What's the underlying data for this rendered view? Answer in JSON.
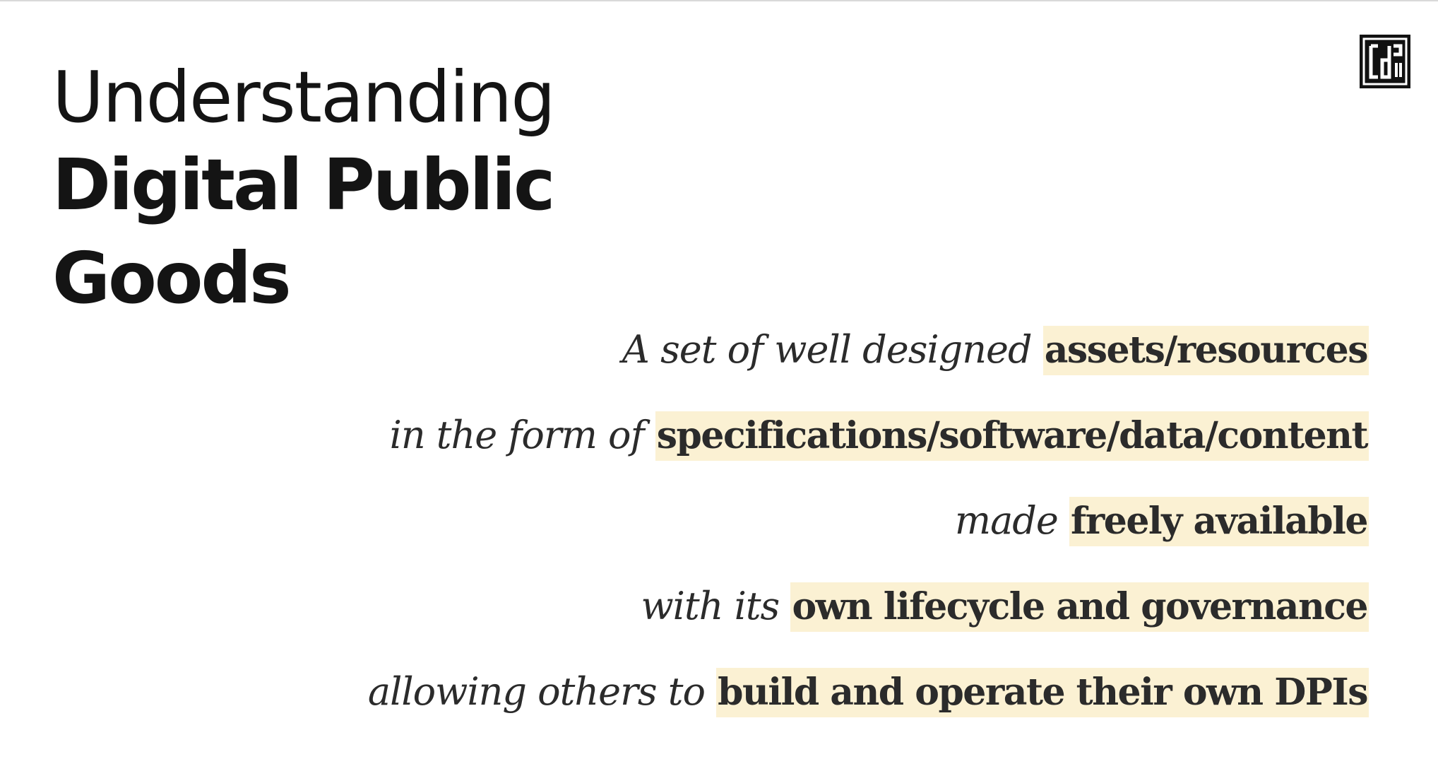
{
  "slide": {
    "title_line1": "Understanding",
    "title_line2": "Digital Public Goods",
    "logo_icon": "cdpi-logo-icon",
    "highlight_color": "#fbf1d3",
    "statements": [
      {
        "plain": "A set of well designed ",
        "highlight": "assets/resources"
      },
      {
        "plain": "in the form of ",
        "highlight": "specifications/software/data/content"
      },
      {
        "plain": "made ",
        "highlight": "freely available"
      },
      {
        "plain": "with its ",
        "highlight": "own lifecycle and governance"
      },
      {
        "plain": "allowing others to ",
        "highlight": "build and operate their own DPIs"
      }
    ]
  }
}
